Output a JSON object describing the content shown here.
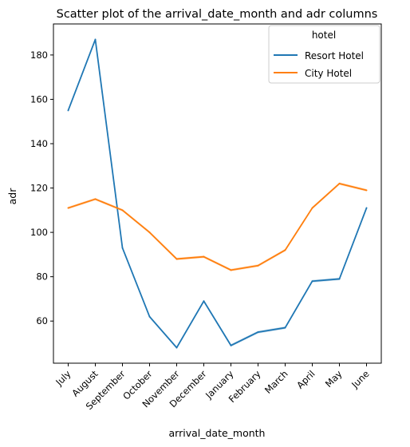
{
  "chart_data": {
    "type": "line",
    "title": "Scatter plot of the arrival_date_month and adr columns",
    "xlabel": "arrival_date_month",
    "ylabel": "adr",
    "categories": [
      "July",
      "August",
      "September",
      "October",
      "November",
      "December",
      "January",
      "February",
      "March",
      "April",
      "May",
      "June"
    ],
    "ylim": [
      41,
      194
    ],
    "yticks": [
      60,
      80,
      100,
      120,
      140,
      160,
      180
    ],
    "legend": {
      "title": "hotel",
      "placement": "top-right"
    },
    "grid": false,
    "series": [
      {
        "name": "Resort Hotel",
        "color": "#1f77b4",
        "values": [
          155,
          187,
          93,
          62,
          48,
          69,
          49,
          55,
          57,
          78,
          79,
          111
        ]
      },
      {
        "name": "City Hotel",
        "color": "#ff7f0e",
        "values": [
          111,
          115,
          110,
          100,
          88,
          89,
          83,
          85,
          92,
          111,
          122,
          119
        ]
      }
    ]
  }
}
